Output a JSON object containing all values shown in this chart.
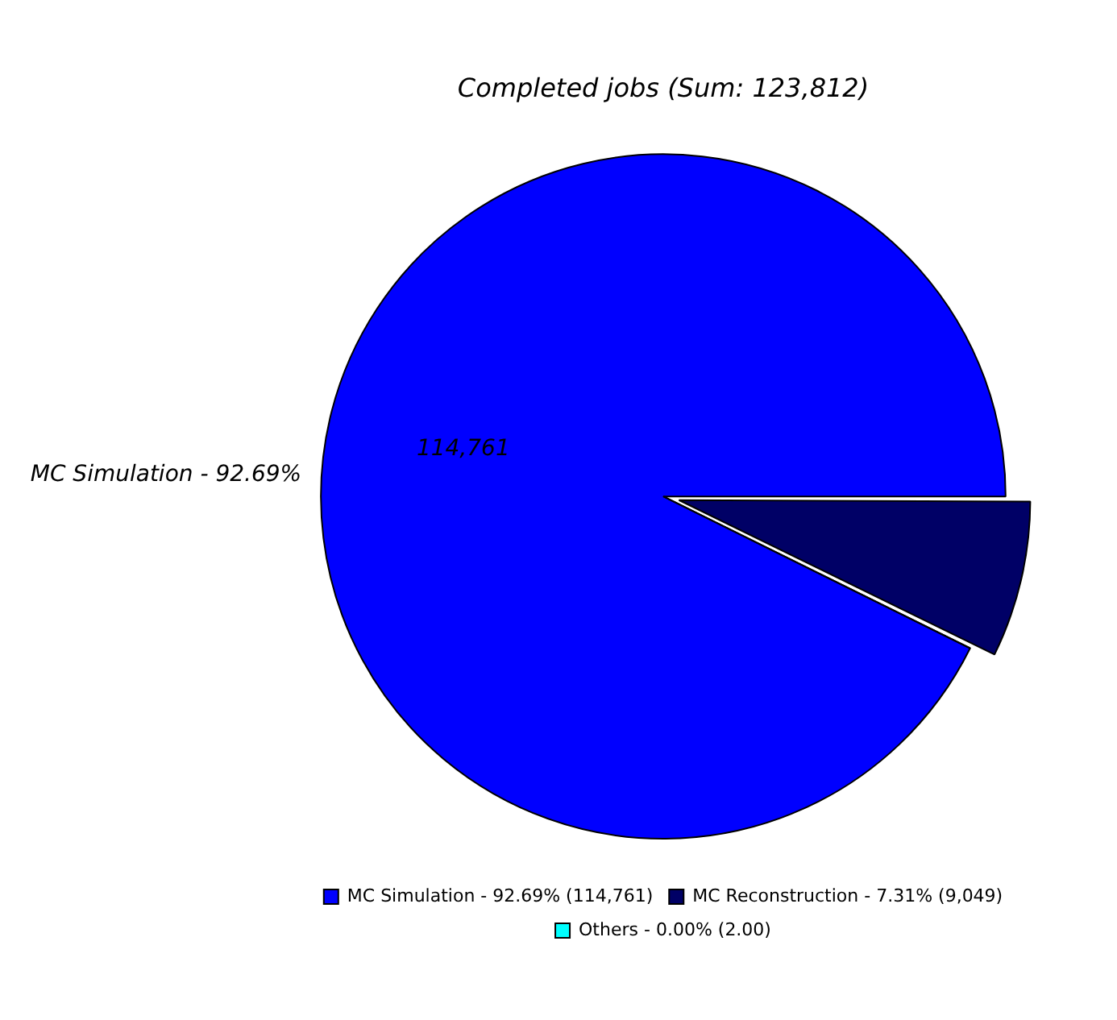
{
  "chart_data": {
    "type": "pie",
    "title": "Completed jobs (Sum: 123,812)",
    "categories": [
      "MC Simulation - 92.69% (114,761)",
      "MC Reconstruction - 7.31% (9,049)",
      "Others - 0.00% (2.00)"
    ],
    "values": [
      114761,
      9049,
      2
    ],
    "colors": [
      "#0000ff",
      "#000066",
      "#00ffff"
    ],
    "value_labels": [
      "114,761",
      null,
      null
    ],
    "annotations": [
      "MC Simulation - 92.69%"
    ],
    "legend": "bottom"
  }
}
